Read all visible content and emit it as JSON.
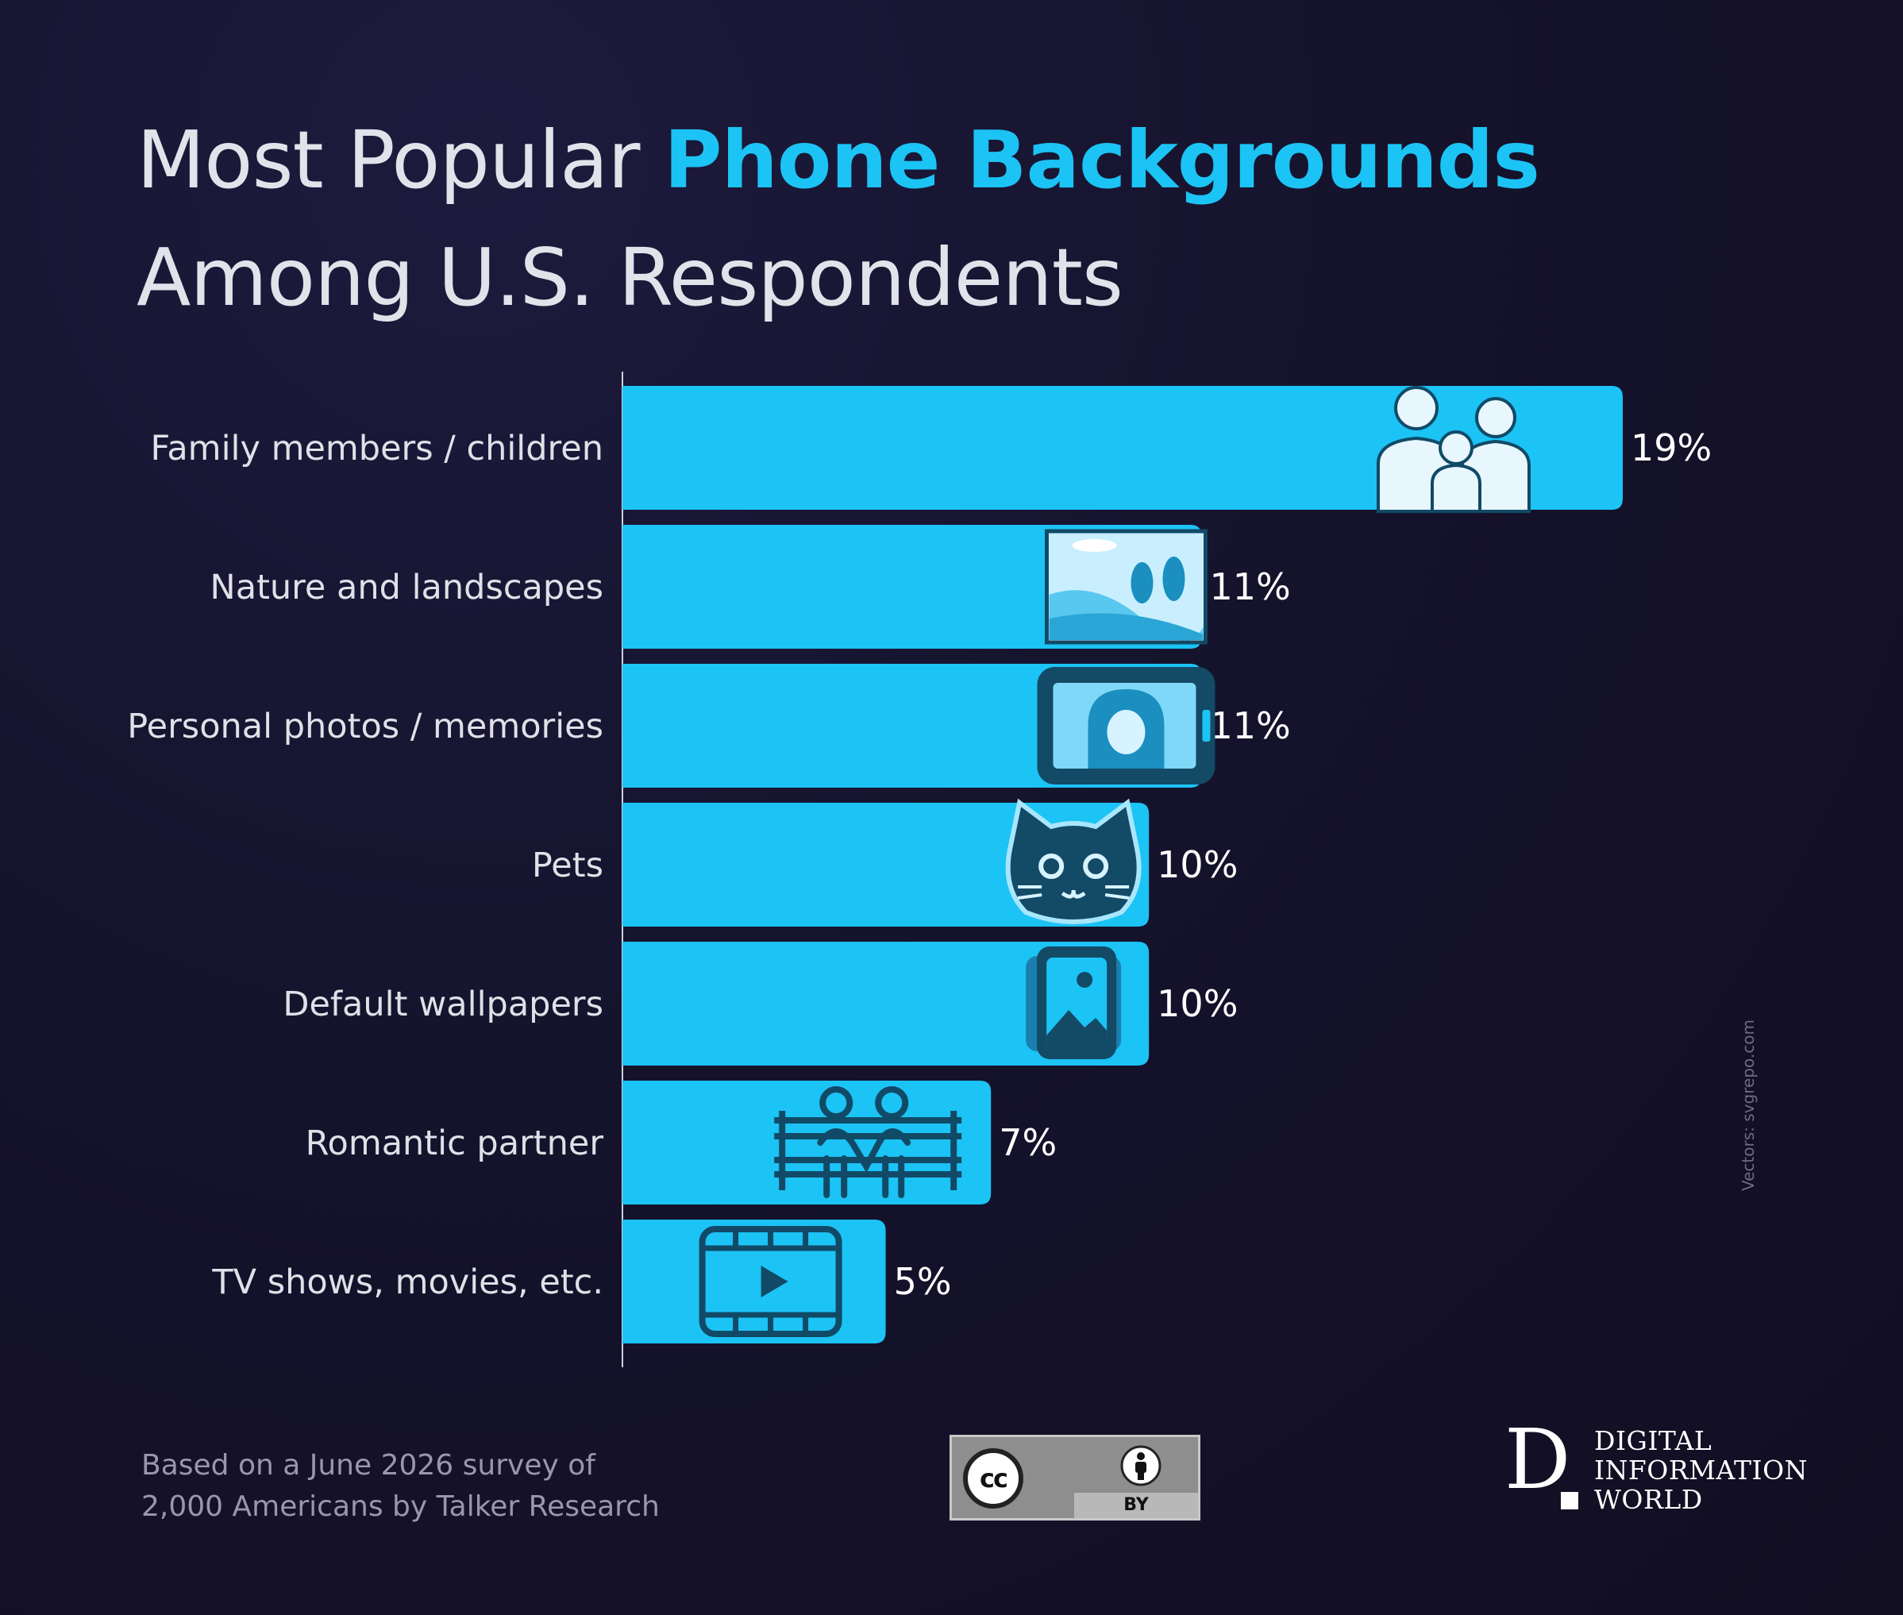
{
  "title": {
    "prefix": "Most Popular ",
    "highlight": "Phone Backgrounds",
    "suffix": " Among U.S. Respondents"
  },
  "colors": {
    "bar": "#1cc3f5",
    "highlight": "#1cc3f5",
    "icon": "#114a66",
    "background": "#15132c"
  },
  "chart_data": {
    "type": "bar",
    "orientation": "horizontal",
    "title": "Most Popular Phone Backgrounds Among U.S. Respondents",
    "categories": [
      "Family members / children",
      "Nature and landscapes",
      "Personal photos / memories",
      "Pets",
      "Default wallpapers",
      "Romantic partner",
      "TV shows, movies, etc."
    ],
    "values": [
      19,
      11,
      11,
      10,
      10,
      7,
      5
    ],
    "value_labels": [
      "19%",
      "11%",
      "11%",
      "10%",
      "10%",
      "7%",
      "5%"
    ],
    "icons": [
      "family-icon",
      "landscape-icon",
      "selfie-phone-icon",
      "cat-icon",
      "gallery-icon",
      "couple-bench-icon",
      "film-icon"
    ],
    "xlim": [
      0,
      19
    ],
    "unit": "%",
    "grid": false,
    "legend": "none"
  },
  "footnote": {
    "line1": "Based on a June 2026 survey of",
    "line2": "2,000 Americans by Talker Research"
  },
  "credits": {
    "vectors": "Vectors: svgrepo.com"
  },
  "license": {
    "cc": "cc",
    "by": "BY"
  },
  "brand": {
    "letter": "D",
    "line1": "DIGITAL",
    "line2": "INFORMATION",
    "line3": "WORLD"
  }
}
